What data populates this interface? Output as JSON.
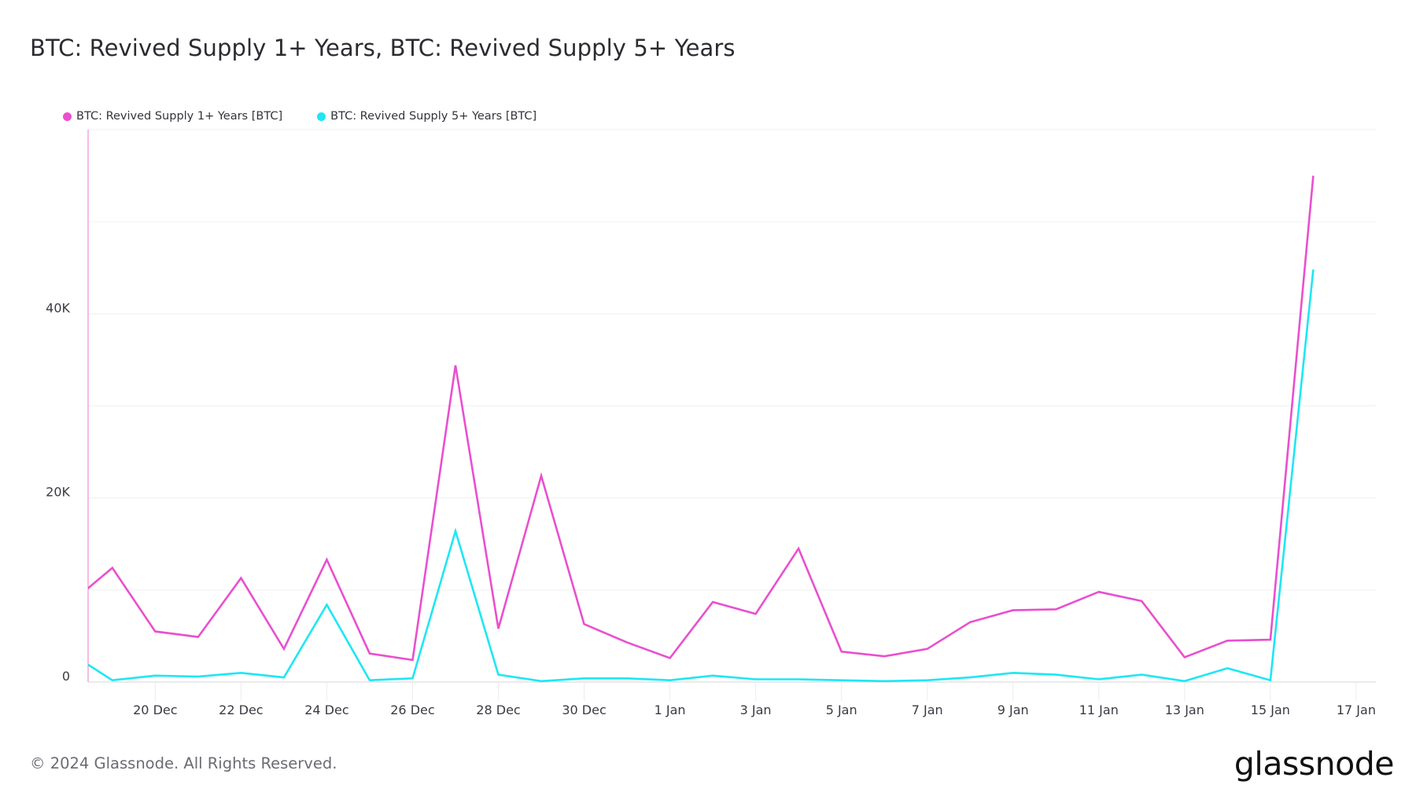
{
  "title": "BTC: Revived Supply 1+ Years, BTC: Revived Supply 5+ Years",
  "legend": [
    {
      "label": "BTC: Revived Supply 1+ Years [BTC]",
      "color": "#e94fcf"
    },
    {
      "label": "BTC: Revived Supply 5+ Years [BTC]",
      "color": "#1ee6f4"
    }
  ],
  "footer": {
    "copyright": "© 2024 Glassnode. All Rights Reserved.",
    "logo": "glassnode"
  },
  "chart_data": {
    "type": "line",
    "title": "BTC: Revived Supply 1+ Years, BTC: Revived Supply 5+ Years",
    "xlabel": "",
    "ylabel": "",
    "ylim": [
      0,
      60000
    ],
    "grid": true,
    "legend_position": "top-left",
    "y_ticks": [
      {
        "value": 0,
        "label": "0"
      },
      {
        "value": 20000,
        "label": "20K"
      },
      {
        "value": 40000,
        "label": "40K"
      }
    ],
    "y_gridlines": [
      0,
      10000,
      20000,
      30000,
      40000,
      50000,
      60000
    ],
    "x_tick_labels": [
      "20 Dec",
      "22 Dec",
      "24 Dec",
      "26 Dec",
      "28 Dec",
      "30 Dec",
      "1 Jan",
      "3 Jan",
      "5 Jan",
      "7 Jan",
      "9 Jan",
      "11 Jan",
      "13 Jan",
      "15 Jan",
      "17 Jan"
    ],
    "x": [
      "18 Dec",
      "19 Dec",
      "20 Dec",
      "21 Dec",
      "22 Dec",
      "23 Dec",
      "24 Dec",
      "25 Dec",
      "26 Dec",
      "27 Dec",
      "28 Dec",
      "29 Dec",
      "30 Dec",
      "31 Dec",
      "1 Jan",
      "2 Jan",
      "3 Jan",
      "4 Jan",
      "5 Jan",
      "6 Jan",
      "7 Jan",
      "8 Jan",
      "9 Jan",
      "10 Jan",
      "11 Jan",
      "12 Jan",
      "13 Jan",
      "14 Jan",
      "15 Jan",
      "16 Jan"
    ],
    "series": [
      {
        "name": "BTC: Revived Supply 1+ Years [BTC]",
        "color": "#e94fcf",
        "values": [
          8500,
          12400,
          5500,
          4900,
          11300,
          3600,
          13300,
          3100,
          2400,
          34400,
          5800,
          22400,
          6300,
          4300,
          2600,
          8700,
          7400,
          14500,
          3300,
          2800,
          3600,
          6500,
          7800,
          7900,
          9800,
          8800,
          2700,
          4500,
          4600,
          55000
        ]
      },
      {
        "name": "BTC: Revived Supply 5+ Years [BTC]",
        "color": "#1ee6f4",
        "values": [
          3200,
          200,
          700,
          600,
          1000,
          500,
          8400,
          200,
          400,
          16400,
          800,
          100,
          400,
          400,
          200,
          700,
          300,
          300,
          200,
          100,
          200,
          500,
          1000,
          800,
          300,
          800,
          100,
          1500,
          200,
          44800
        ]
      }
    ]
  }
}
